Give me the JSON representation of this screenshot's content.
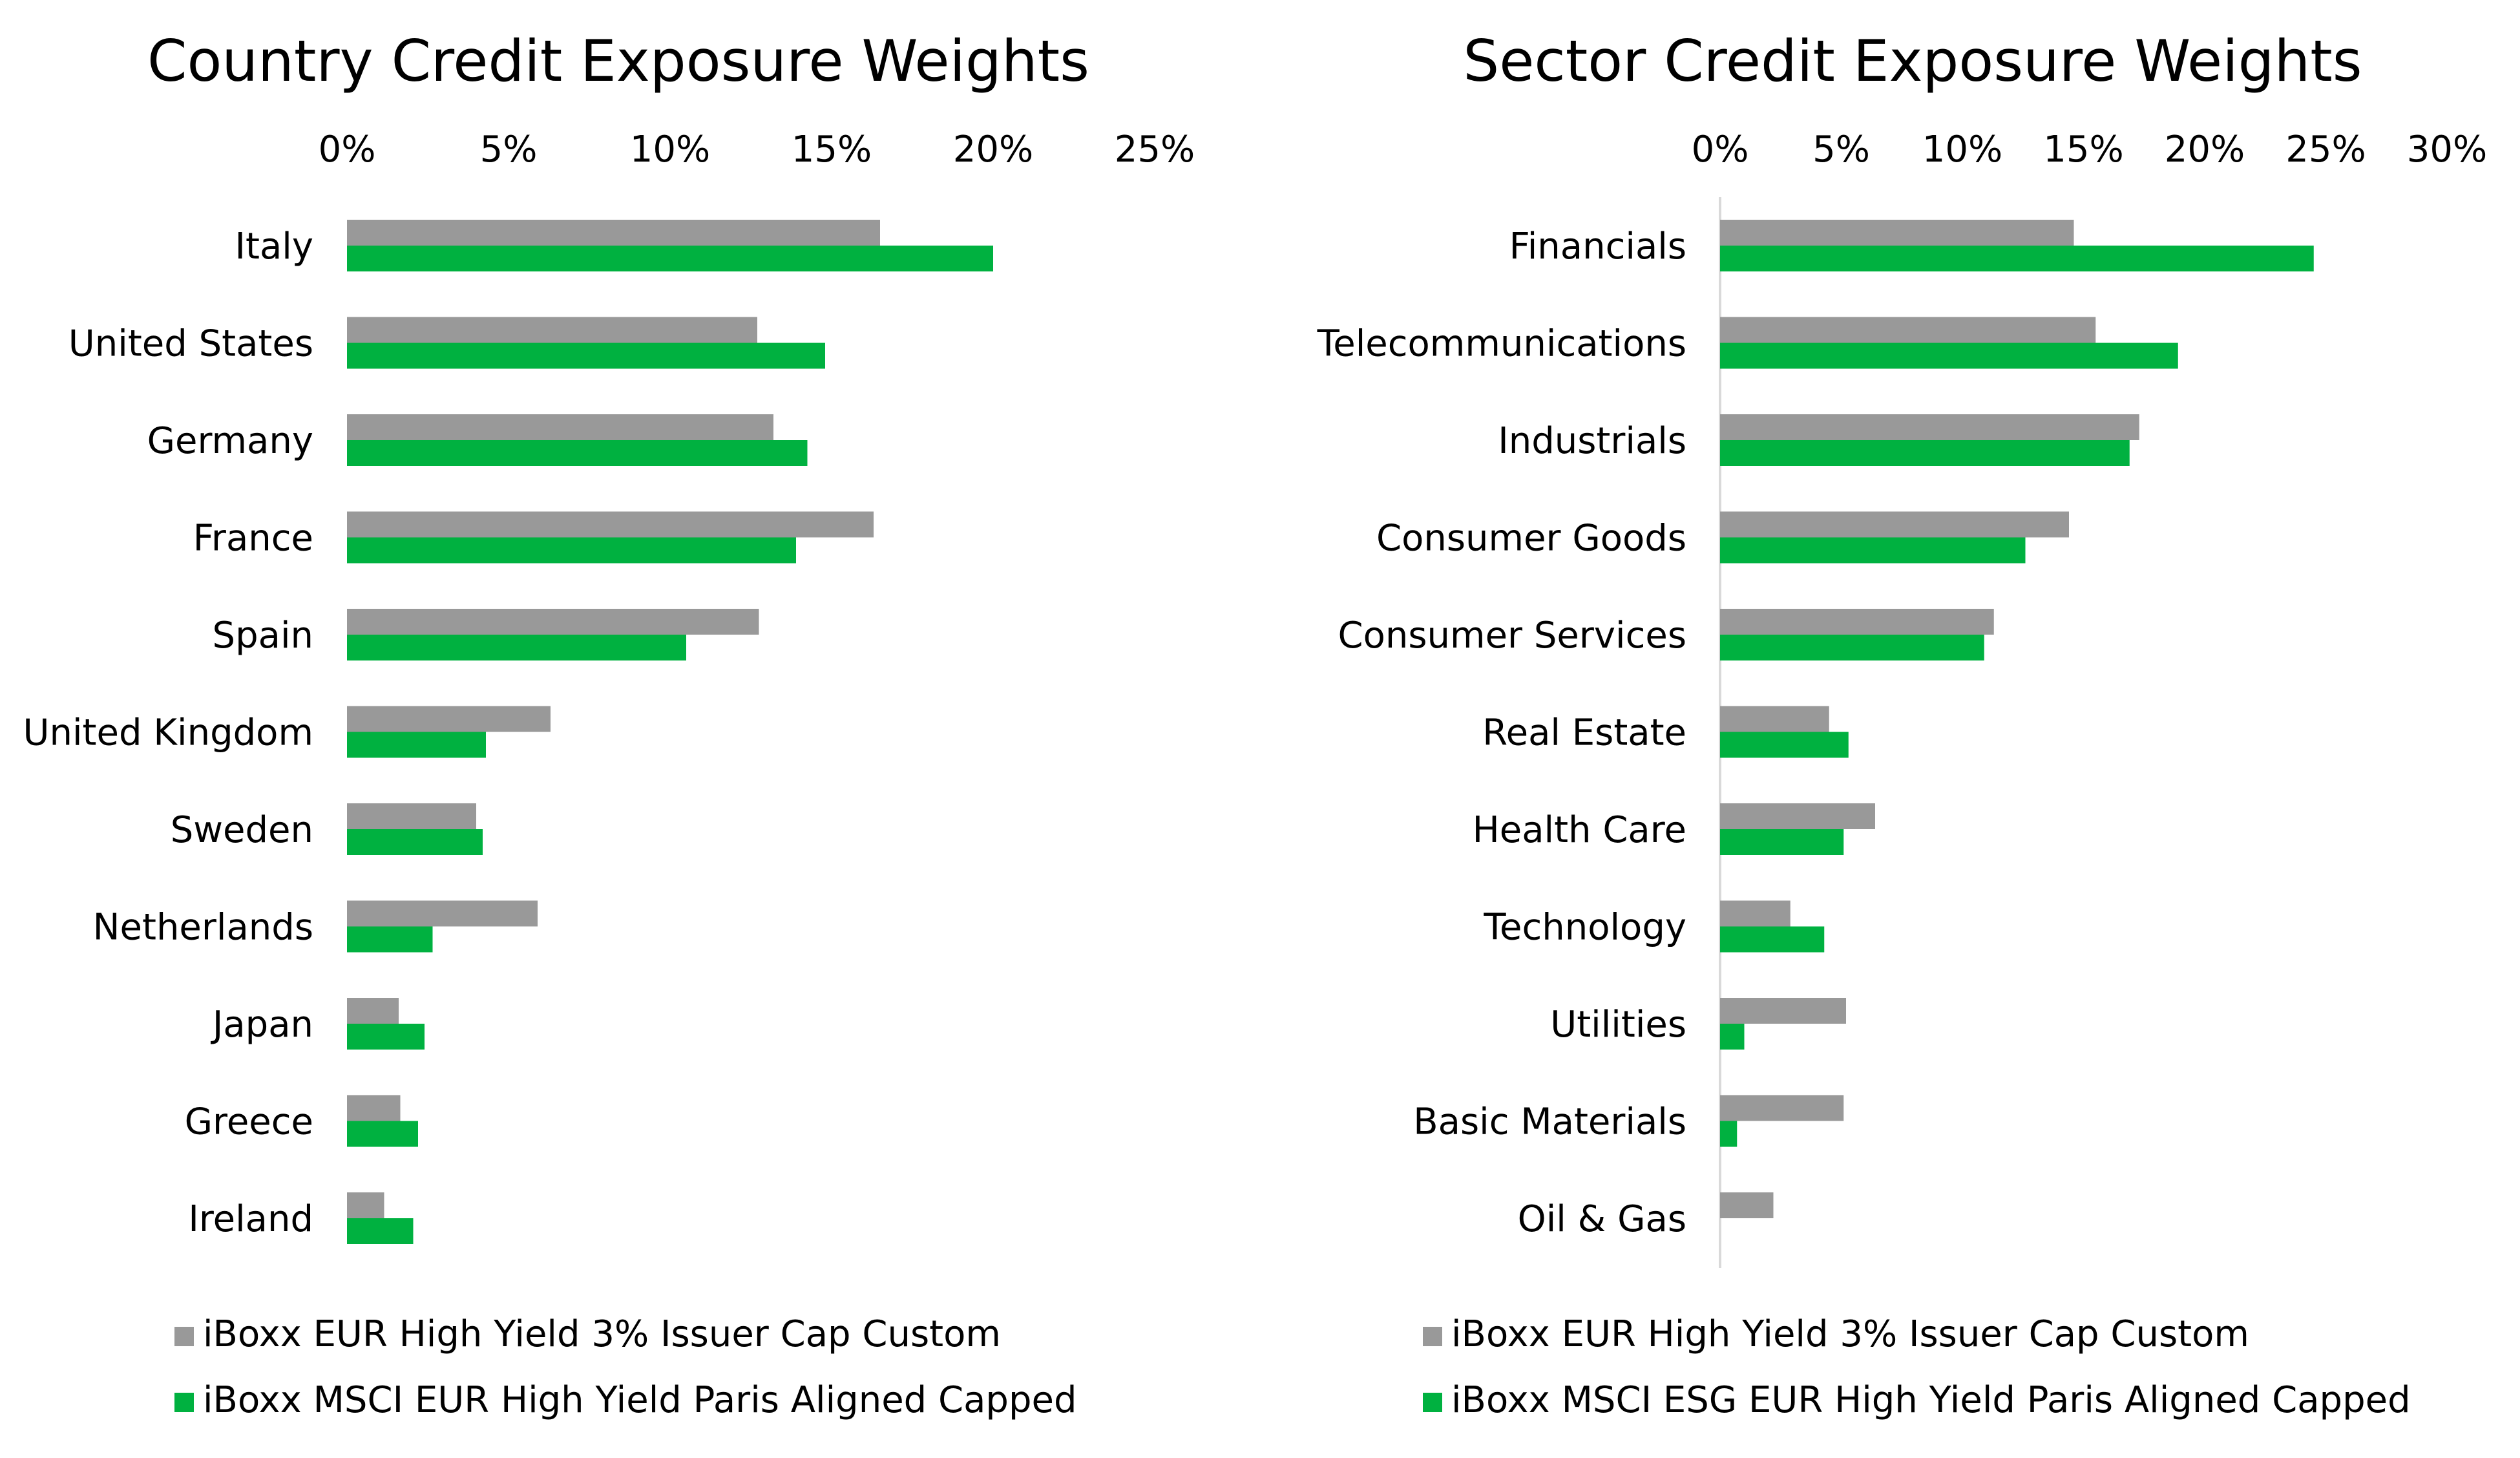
{
  "colors": {
    "gray": "#999999",
    "green": "#00B140",
    "axis": "#d9d9d9"
  },
  "chart_data": [
    {
      "type": "bar",
      "orientation": "horizontal",
      "title": "Country Credit Exposure Weights",
      "categories": [
        "Italy",
        "United States",
        "Germany",
        "France",
        "Spain",
        "United Kingdom",
        "Sweden",
        "Netherlands",
        "Japan",
        "Greece",
        "Ireland"
      ],
      "series": [
        {
          "name": "iBoxx EUR High Yield 3% Issuer Cap Custom",
          "color": "gray",
          "values": [
            16.5,
            12.7,
            13.2,
            16.3,
            12.75,
            6.3,
            4.0,
            5.9,
            1.6,
            1.65,
            1.15
          ]
        },
        {
          "name": "iBoxx MSCI EUR High Yield Paris Aligned Capped",
          "color": "green",
          "values": [
            20.0,
            14.8,
            14.25,
            13.9,
            10.5,
            4.3,
            4.2,
            2.65,
            2.4,
            2.2,
            2.05
          ]
        }
      ],
      "xlim": [
        0,
        25
      ],
      "ticks": [
        0,
        5,
        10,
        15,
        20,
        25
      ],
      "tick_labels": [
        "0%",
        "5%",
        "10%",
        "15%",
        "20%",
        "25%"
      ],
      "xlabel": "",
      "ylabel": "",
      "legend_position": "bottom",
      "grid": false
    },
    {
      "type": "bar",
      "orientation": "horizontal",
      "title": "Sector Credit Exposure Weights",
      "categories": [
        "Financials",
        "Telecommunications",
        "Industrials",
        "Consumer Goods",
        "Consumer Services",
        "Real Estate",
        "Health Care",
        "Technology",
        "Utilities",
        "Basic Materials",
        "Oil & Gas"
      ],
      "series": [
        {
          "name": "iBoxx EUR High Yield 3% Issuer Cap Custom",
          "color": "gray",
          "values": [
            14.6,
            15.5,
            17.3,
            14.4,
            11.3,
            4.5,
            6.4,
            2.9,
            5.2,
            5.1,
            2.2
          ]
        },
        {
          "name": "iBoxx MSCI ESG EUR High Yield Paris Aligned Capped",
          "color": "green",
          "values": [
            24.5,
            18.9,
            16.9,
            12.6,
            10.9,
            5.3,
            5.1,
            4.3,
            1.0,
            0.7,
            0.0
          ]
        }
      ],
      "xlim": [
        0,
        30
      ],
      "ticks": [
        0,
        5,
        10,
        15,
        20,
        25,
        30
      ],
      "tick_labels": [
        "0%",
        "5%",
        "10%",
        "15%",
        "20%",
        "25%",
        "30%"
      ],
      "xlabel": "",
      "ylabel": "",
      "legend_position": "bottom",
      "grid": false,
      "axis_line": true
    }
  ]
}
